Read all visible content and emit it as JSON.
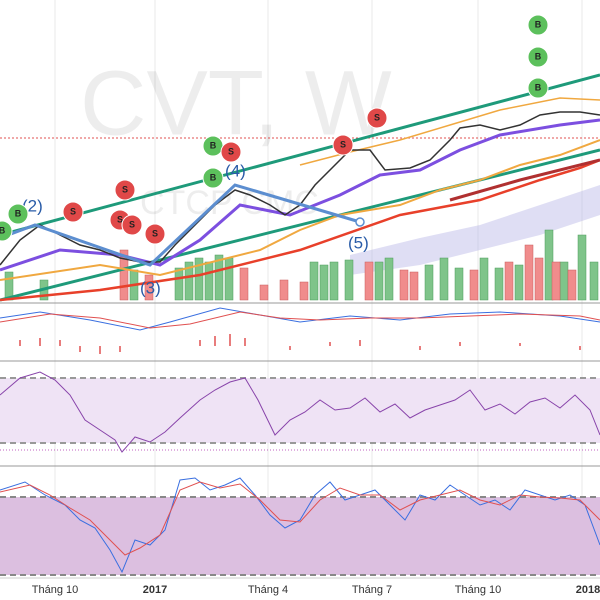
{
  "watermark": "CVT, W",
  "watermark_sub": "CTCP CMC",
  "x_labels": [
    "Tháng 10",
    "2017",
    "Tháng 4",
    "Tháng 7",
    "Tháng 10",
    "2018"
  ],
  "wave_labels": [
    "(2)",
    "(3)",
    "(4)",
    "(5)"
  ],
  "buy_label": "B",
  "sell_label": "S"
}
